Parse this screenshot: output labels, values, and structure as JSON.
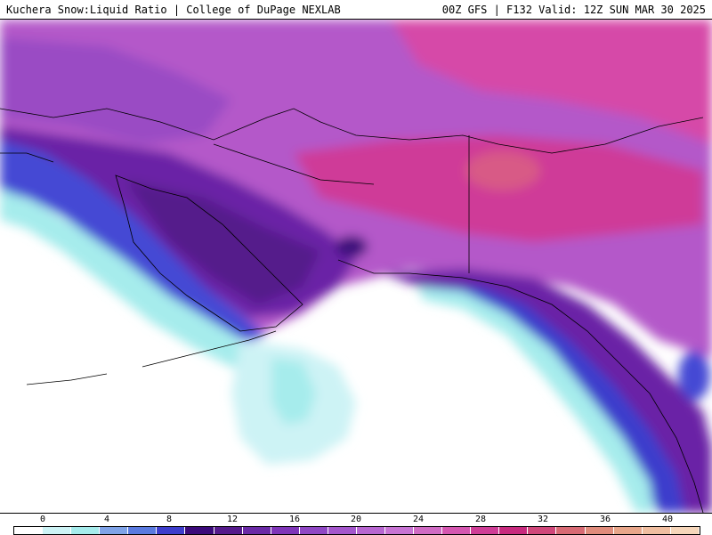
{
  "header": {
    "title": "Kuchera Snow:Liquid Ratio | College of DuPage NEXLAB",
    "model_info": "00Z GFS | F132 Valid: 12Z SUN MAR 30 2025"
  },
  "colorbar": {
    "tick_labels": [
      "0",
      "4",
      "8",
      "12",
      "16",
      "20",
      "24",
      "28",
      "32",
      "36",
      "40"
    ],
    "colors": [
      "#ffffff",
      "#cdf3f5",
      "#a6ecec",
      "#7fa3e8",
      "#5a7ae0",
      "#3d3dcc",
      "#3b0a7a",
      "#551a8b",
      "#6a2aa6",
      "#7f35b8",
      "#8f47c4",
      "#a456cc",
      "#b866d1",
      "#c874d4",
      "#d06bc4",
      "#d556b0",
      "#cf3d96",
      "#c82a7e",
      "#d0477a",
      "#d86a74",
      "#e08c7c",
      "#e8a68a",
      "#f0bea0",
      "#f6d6ba"
    ]
  },
  "map": {
    "region": "Alaska and northeastern Pacific"
  }
}
